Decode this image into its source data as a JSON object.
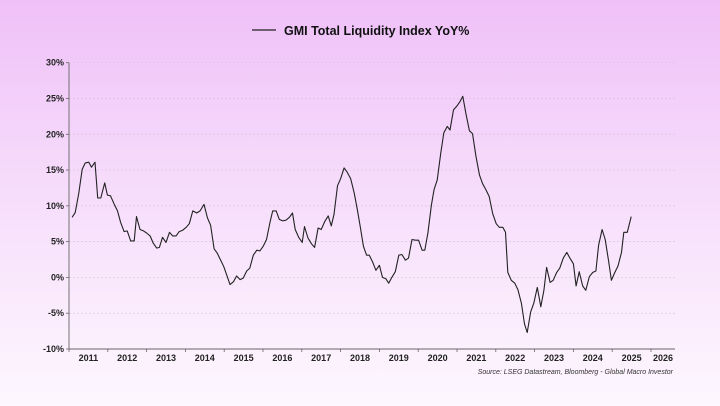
{
  "chart_data": {
    "type": "line",
    "title": "GMI Total Liquidity Index YoY%",
    "xlabel": "",
    "ylabel": "",
    "source": "Source: LSEG Datastream, Bloomberg - Global Macro Investor",
    "legend": {
      "placement": "top-center",
      "entries": [
        "GMI Total Liquidity Index YoY%"
      ]
    },
    "xlim": [
      2011,
      2026.62
    ],
    "ylim": [
      -10,
      30
    ],
    "grid": true,
    "yticks": [
      30,
      25,
      20,
      15,
      10,
      5,
      0,
      -5,
      -10
    ],
    "ytick_labels": [
      "30%",
      "25%",
      "20%",
      "15%",
      "10%",
      "5%",
      "0%",
      "-5%",
      "-10%"
    ],
    "xtick_labels": [
      "2011",
      "2012",
      "2013",
      "2014",
      "2015",
      "2016",
      "2017",
      "2018",
      "2019",
      "2020",
      "2021",
      "2022",
      "2023",
      "2024",
      "2025",
      "2026"
    ],
    "line_color": "#222222",
    "series": [
      {
        "name": "GMI Total Liquidity Index YoY%",
        "x": [
          2011.08,
          2011.16,
          2011.25,
          2011.34,
          2011.42,
          2011.51,
          2011.58,
          2011.67,
          2011.74,
          2011.82,
          2011.92,
          2011.99,
          2012.07,
          2012.16,
          2012.25,
          2012.33,
          2012.42,
          2012.5,
          2012.59,
          2012.68,
          2012.74,
          2012.83,
          2012.92,
          2013.0,
          2013.09,
          2013.17,
          2013.26,
          2013.33,
          2013.41,
          2013.5,
          2013.59,
          2013.67,
          2013.76,
          2013.84,
          2013.93,
          2014.02,
          2014.1,
          2014.19,
          2014.29,
          2014.38,
          2014.48,
          2014.57,
          2014.65,
          2014.74,
          2014.82,
          2014.91,
          2014.99,
          2015.08,
          2015.15,
          2015.24,
          2015.32,
          2015.41,
          2015.49,
          2015.58,
          2015.66,
          2015.75,
          2015.84,
          2015.92,
          2016.01,
          2016.09,
          2016.18,
          2016.25,
          2016.34,
          2016.42,
          2016.51,
          2016.59,
          2016.68,
          2016.76,
          2016.83,
          2016.92,
          2017.01,
          2017.07,
          2017.16,
          2017.25,
          2017.33,
          2017.42,
          2017.5,
          2017.59,
          2017.68,
          2017.76,
          2017.83,
          2017.92,
          2018.0,
          2018.09,
          2018.17,
          2018.26,
          2018.35,
          2018.43,
          2018.5,
          2018.59,
          2018.67,
          2018.74,
          2018.83,
          2018.91,
          2019.0,
          2019.08,
          2019.17,
          2019.24,
          2019.32,
          2019.41,
          2019.5,
          2019.58,
          2019.67,
          2019.75,
          2019.84,
          2019.93,
          2020.01,
          2020.1,
          2020.17,
          2020.25,
          2020.34,
          2020.41,
          2020.49,
          2020.58,
          2020.66,
          2020.75,
          2020.82,
          2020.91,
          2020.99,
          2021.08,
          2021.15,
          2021.23,
          2021.32,
          2021.4,
          2021.49,
          2021.58,
          2021.66,
          2021.75,
          2021.83,
          2021.92,
          2022.01,
          2022.09,
          2022.18,
          2022.25,
          2022.31,
          2022.4,
          2022.49,
          2022.57,
          2022.66,
          2022.74,
          2022.81,
          2022.9,
          2022.98,
          2023.07,
          2023.16,
          2023.24,
          2023.31,
          2023.4,
          2023.48,
          2023.57,
          2023.65,
          2023.74,
          2023.83,
          2023.91,
          2024.0,
          2024.07,
          2024.15,
          2024.24,
          2024.32,
          2024.41,
          2024.5,
          2024.58,
          2024.65,
          2024.74,
          2024.82,
          2024.91,
          2024.98,
          2025.06,
          2025.15,
          2025.24,
          2025.3,
          2025.39,
          2025.49
        ],
        "y": [
          8.4,
          9.05,
          11.7,
          15.1,
          16.0,
          16.1,
          15.4,
          16.1,
          11.1,
          11.1,
          13.2,
          11.5,
          11.4,
          10.3,
          9.3,
          7.7,
          6.4,
          6.5,
          5.1,
          5.1,
          8.5,
          6.7,
          6.5,
          6.2,
          5.8,
          4.8,
          4.1,
          4.2,
          5.6,
          4.9,
          6.3,
          5.8,
          5.8,
          6.4,
          6.6,
          7.0,
          7.5,
          9.3,
          9.0,
          9.3,
          10.2,
          8.3,
          7.3,
          4.0,
          3.4,
          2.4,
          1.5,
          0.1,
          -1.0,
          -0.6,
          0.2,
          -0.3,
          -0.1,
          0.9,
          1.3,
          3.1,
          3.8,
          3.7,
          4.4,
          5.3,
          7.7,
          9.3,
          9.3,
          8.1,
          7.9,
          8.0,
          8.4,
          9.0,
          6.7,
          5.6,
          4.9,
          7.1,
          5.5,
          4.7,
          4.2,
          6.9,
          6.7,
          7.8,
          8.6,
          7.2,
          8.8,
          12.8,
          13.8,
          15.3,
          14.7,
          13.8,
          11.8,
          9.5,
          7.3,
          4.3,
          3.1,
          3.1,
          2.1,
          1.0,
          1.7,
          0.0,
          -0.2,
          -0.8,
          0.0,
          0.8,
          3.1,
          3.2,
          2.4,
          2.7,
          5.3,
          5.2,
          5.2,
          3.8,
          3.8,
          6.2,
          10.1,
          12.3,
          13.6,
          17.3,
          20.2,
          21.1,
          20.6,
          23.4,
          23.9,
          24.6,
          25.3,
          22.9,
          20.5,
          20.1,
          16.9,
          14.3,
          13.1,
          12.2,
          11.3,
          8.9,
          7.5,
          7.0,
          7.0,
          6.3,
          0.7,
          -0.4,
          -0.8,
          -1.7,
          -3.6,
          -6.5,
          -7.7,
          -4.8,
          -3.6,
          -1.4,
          -4.1,
          -1.8,
          1.4,
          -0.7,
          -0.4,
          0.7,
          1.3,
          2.7,
          3.5,
          2.7,
          1.9,
          -1.2,
          0.8,
          -1.2,
          -1.8,
          0.1,
          0.7,
          0.9,
          4.5,
          6.7,
          5.3,
          2.2,
          -0.4,
          0.6,
          1.6,
          3.5,
          6.3,
          6.3,
          8.5
        ]
      }
    ]
  }
}
